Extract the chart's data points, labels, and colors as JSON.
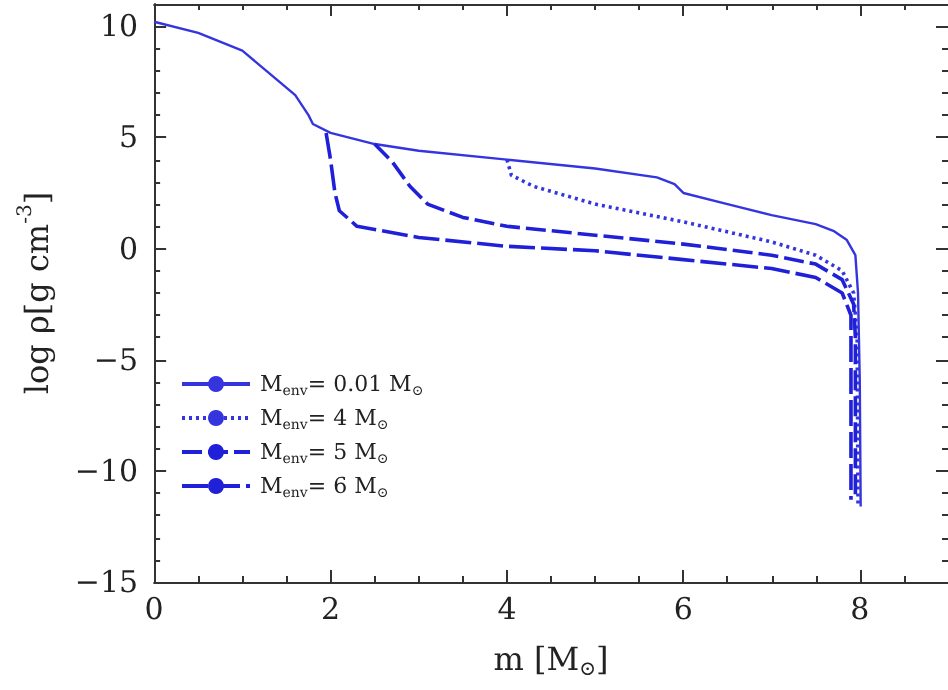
{
  "chart_data": {
    "type": "line",
    "xlabel": "m [M$_{⊙}$]",
    "ylabel": "log ρ[g cm$^{-3}$]",
    "xlim": [
      0,
      9
    ],
    "xticks": [
      0,
      2,
      4,
      6,
      8
    ],
    "ylim": [
      -15,
      11
    ],
    "yticks": [
      -15,
      -10,
      -5,
      0,
      5,
      10
    ],
    "grid": false,
    "legend": "bottom left",
    "marker": "none",
    "series": [
      {
        "name": "M$_{env}$= 0.01 M$_{⊙}$",
        "color": "#3535e0",
        "line_style": "solid",
        "x": [
          0,
          0.5,
          1,
          1.3,
          1.6,
          1.75,
          1.8,
          2,
          2.5,
          3,
          4,
          5,
          5.7,
          5.9,
          6,
          6.5,
          7,
          7.5,
          7.7,
          7.85,
          7.95,
          7.98,
          8,
          8.01
        ],
        "values": [
          10.2,
          9.7,
          8.9,
          7.9,
          6.9,
          6.0,
          5.6,
          5.2,
          4.7,
          4.4,
          4.0,
          3.6,
          3.2,
          2.9,
          2.5,
          2.0,
          1.5,
          1.1,
          0.8,
          0.4,
          -0.3,
          -2,
          -6,
          -11.6
        ]
      },
      {
        "name": "M$_{env}$= 4 M$_{⊙}$",
        "color": "#3535e0",
        "line_style": "dotted",
        "x": [
          4,
          4.05,
          4.3,
          5,
          6,
          7,
          7.5,
          7.8,
          7.93,
          7.97,
          7.98
        ],
        "values": [
          4.0,
          3.3,
          2.8,
          2.0,
          1.2,
          0.3,
          -0.3,
          -1.0,
          -2,
          -4,
          -11.5
        ]
      },
      {
        "name": "M$_{env}$= 5 M$_{⊙}$",
        "color": "#2020d8",
        "line_style": "dashed",
        "x": [
          2.5,
          2.7,
          2.9,
          3.1,
          3.5,
          4,
          5,
          6,
          7,
          7.5,
          7.8,
          7.93,
          7.95,
          7.95
        ],
        "values": [
          4.7,
          3.9,
          2.8,
          2.0,
          1.4,
          1.0,
          0.6,
          0.2,
          -0.3,
          -0.7,
          -1.4,
          -2.5,
          -4,
          -11.3
        ]
      },
      {
        "name": "M$_{env}$= 6 M$_{⊙}$",
        "color": "#2020d8",
        "line_style": "dashed",
        "x": [
          1.95,
          2.0,
          2.05,
          2.1,
          2.3,
          3,
          4,
          5,
          6,
          7,
          7.5,
          7.8,
          7.9,
          7.9
        ],
        "values": [
          5.2,
          4.0,
          2.5,
          1.7,
          1.0,
          0.5,
          0.1,
          -0.1,
          -0.5,
          -0.9,
          -1.3,
          -2.0,
          -3,
          -11.3
        ]
      }
    ]
  }
}
